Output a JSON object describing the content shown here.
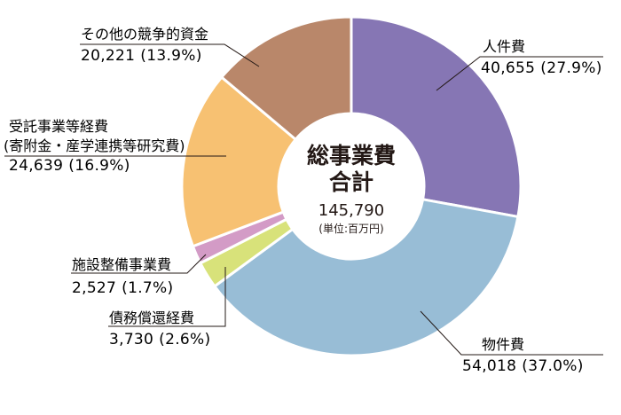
{
  "chart_data": {
    "type": "donut",
    "center": {
      "title_line1": "総事業費",
      "title_line2": "合計",
      "total": "145,790",
      "unit": "(単位:百万円)"
    },
    "series": [
      {
        "name": "人件費",
        "value": 40655,
        "value_text": "40,655",
        "percent": 27.9,
        "percent_text": "(27.9%)",
        "color": "#8676b4"
      },
      {
        "name": "物件費",
        "value": 54018,
        "value_text": "54,018",
        "percent": 37.0,
        "percent_text": "(37.0%)",
        "color": "#98bdd6"
      },
      {
        "name": "債務償還経費",
        "value": 3730,
        "value_text": "3,730",
        "percent": 2.6,
        "percent_text": "(2.6%)",
        "color": "#d8e27a"
      },
      {
        "name": "施設整備事業費",
        "value": 2527,
        "value_text": "2,527",
        "percent": 1.7,
        "percent_text": "(1.7%)",
        "color": "#d39bc6"
      },
      {
        "name": "受託事業等経費",
        "name_line2": "(寄附金・産学連携等研究費)",
        "value": 24639,
        "value_text": "24,639",
        "percent": 16.9,
        "percent_text": "(16.9%)",
        "color": "#f7c172"
      },
      {
        "name": "その他の競争的資金",
        "value": 20221,
        "value_text": "20,221",
        "percent": 13.9,
        "percent_text": "(13.9%)",
        "color": "#b9876a"
      }
    ]
  }
}
